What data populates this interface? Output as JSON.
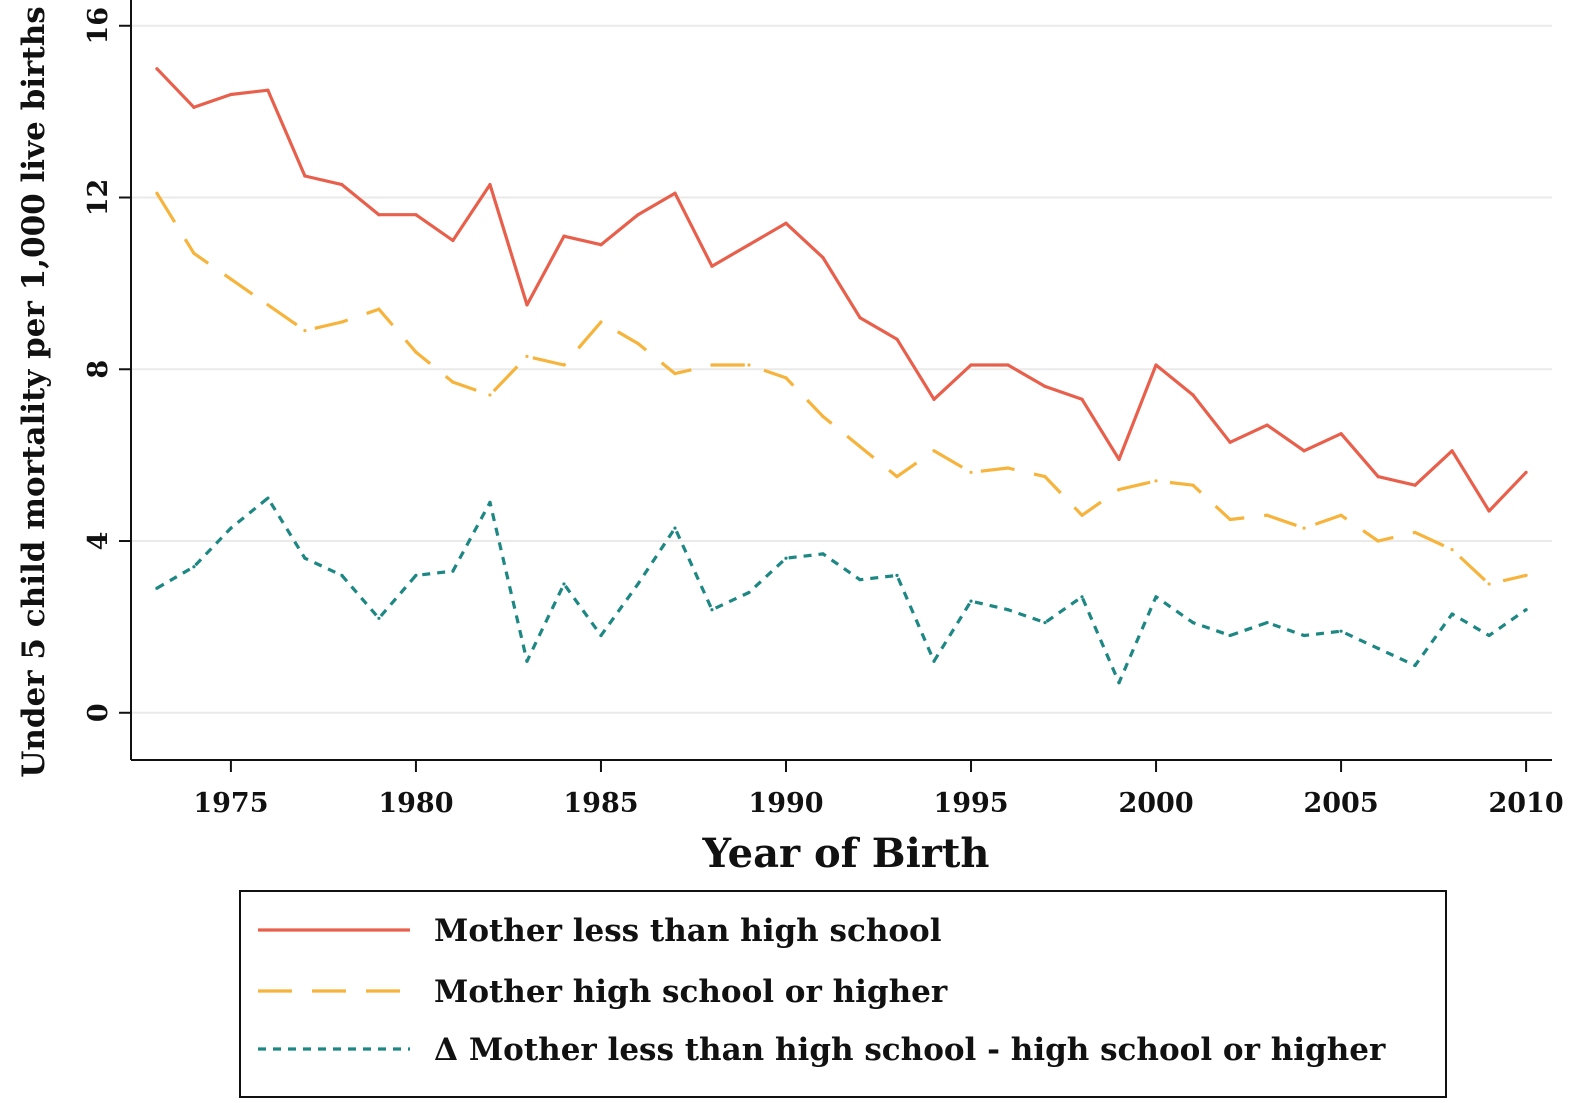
{
  "chart_data": {
    "type": "line",
    "title": "",
    "xlabel": "Year of Birth",
    "ylabel": "Under 5 child mortality per 1,000 live births",
    "xlim": [
      1972.3,
      2010.7
    ],
    "ylim": [
      -1.1,
      16.6
    ],
    "x_ticks": [
      1975,
      1980,
      1985,
      1990,
      1995,
      2000,
      2005,
      2010
    ],
    "y_ticks": [
      0,
      4,
      8,
      12,
      16
    ],
    "grid": "horizontal",
    "legend_position": "bottom",
    "x": [
      1973,
      1974,
      1975,
      1976,
      1977,
      1978,
      1979,
      1980,
      1981,
      1982,
      1983,
      1984,
      1985,
      1986,
      1987,
      1988,
      1989,
      1990,
      1991,
      1992,
      1993,
      1994,
      1995,
      1996,
      1997,
      1998,
      1999,
      2000,
      2001,
      2002,
      2003,
      2004,
      2005,
      2006,
      2007,
      2008,
      2009,
      2010
    ],
    "series": [
      {
        "name": "Mother less than high school",
        "color": "#e8604c",
        "style": "solid",
        "values": [
          15.0,
          14.1,
          14.4,
          14.5,
          12.5,
          12.3,
          11.6,
          11.6,
          11.0,
          12.3,
          9.5,
          11.1,
          10.9,
          11.6,
          12.1,
          10.4,
          10.9,
          11.4,
          10.6,
          9.2,
          8.7,
          7.3,
          8.1,
          8.1,
          7.6,
          7.3,
          5.9,
          8.1,
          7.4,
          6.3,
          6.7,
          6.1,
          6.5,
          5.5,
          5.3,
          6.1,
          4.7,
          5.6
        ]
      },
      {
        "name": "Mother high school or higher",
        "color": "#f7b43c",
        "style": "dashed",
        "values": [
          12.1,
          10.7,
          10.1,
          9.5,
          8.9,
          9.1,
          9.4,
          8.4,
          7.7,
          7.4,
          8.3,
          8.1,
          9.1,
          8.6,
          7.9,
          8.1,
          8.1,
          7.8,
          6.9,
          6.2,
          5.5,
          6.1,
          5.6,
          5.7,
          5.5,
          4.6,
          5.2,
          5.4,
          5.3,
          4.5,
          4.6,
          4.3,
          4.6,
          4.0,
          4.2,
          3.8,
          3.0,
          3.2
        ]
      },
      {
        "name": "Δ Mother less than high school - high school or higher",
        "color": "#1d8783",
        "style": "dotted",
        "values": [
          2.9,
          3.4,
          4.3,
          5.0,
          3.6,
          3.2,
          2.2,
          3.2,
          3.3,
          4.9,
          1.2,
          3.0,
          1.8,
          3.0,
          4.3,
          2.4,
          2.8,
          3.6,
          3.7,
          3.1,
          3.2,
          1.2,
          2.6,
          2.4,
          2.1,
          2.7,
          0.7,
          2.7,
          2.1,
          1.8,
          2.1,
          1.8,
          1.9,
          1.5,
          1.1,
          2.3,
          1.8,
          2.4
        ]
      }
    ]
  }
}
